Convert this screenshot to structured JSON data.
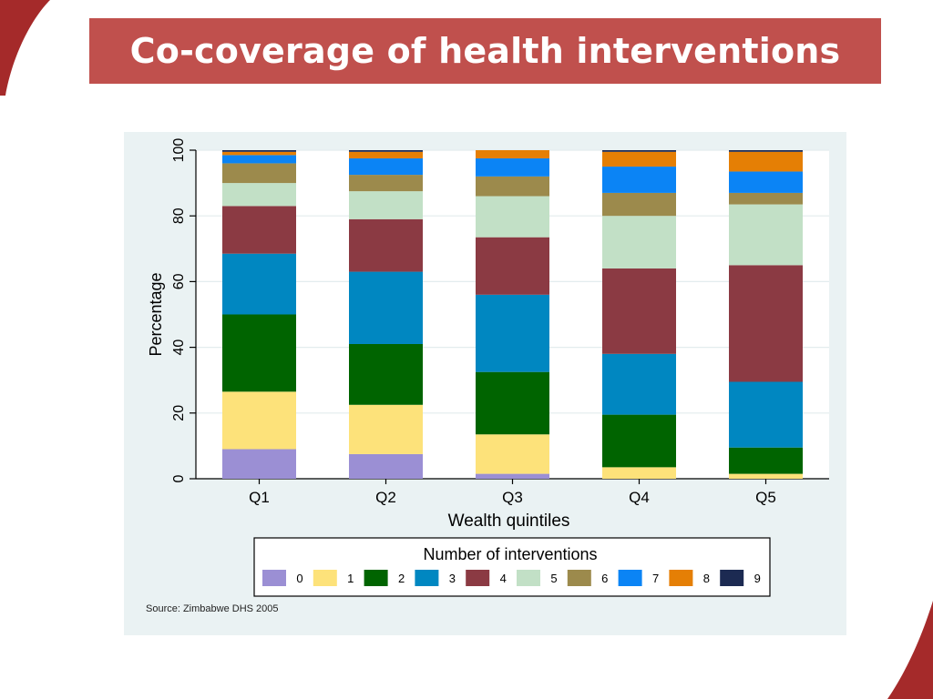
{
  "slide": {
    "title": "Co-coverage of health interventions",
    "source": "Source: Zimbabwe DHS 2005"
  },
  "colors": {
    "banner": "#c0504d",
    "corner": "#a52a2a",
    "panel": "#eaf2f3"
  },
  "chart_data": {
    "type": "bar",
    "stacked": true,
    "title": "",
    "xlabel": "Wealth quintiles",
    "ylabel": "Percentage",
    "ylim": [
      0,
      100
    ],
    "yticks": [
      0,
      20,
      40,
      60,
      80,
      100
    ],
    "grid": true,
    "categories": [
      "Q1",
      "Q2",
      "Q3",
      "Q4",
      "Q5"
    ],
    "legend_title": "Number of interventions",
    "legend_position": "bottom",
    "series": [
      {
        "name": "0",
        "color": "#9b8fd4",
        "values": [
          9,
          7.5,
          1.5,
          0,
          0
        ]
      },
      {
        "name": "1",
        "color": "#fde27a",
        "values": [
          17.5,
          15,
          12,
          3.5,
          1.5
        ]
      },
      {
        "name": "2",
        "color": "#006400",
        "values": [
          23.5,
          18.5,
          19,
          16,
          8
        ]
      },
      {
        "name": "3",
        "color": "#0087c1",
        "values": [
          18.5,
          22,
          23.5,
          18.5,
          20
        ]
      },
      {
        "name": "4",
        "color": "#8b3a43",
        "values": [
          14.5,
          16,
          17.5,
          26,
          35.5
        ]
      },
      {
        "name": "5",
        "color": "#c2e0c6",
        "values": [
          7,
          8.5,
          12.5,
          16,
          18.5
        ]
      },
      {
        "name": "6",
        "color": "#9c8a4c",
        "values": [
          6,
          5,
          6,
          7,
          3.5
        ]
      },
      {
        "name": "7",
        "color": "#0b84f5",
        "values": [
          2.5,
          5,
          5.5,
          8,
          6.5
        ]
      },
      {
        "name": "8",
        "color": "#e57f05",
        "values": [
          1,
          2,
          2.5,
          4.5,
          6
        ]
      },
      {
        "name": "9",
        "color": "#1c2a52",
        "values": [
          0.5,
          0.5,
          0,
          0.5,
          0.5
        ]
      }
    ]
  }
}
